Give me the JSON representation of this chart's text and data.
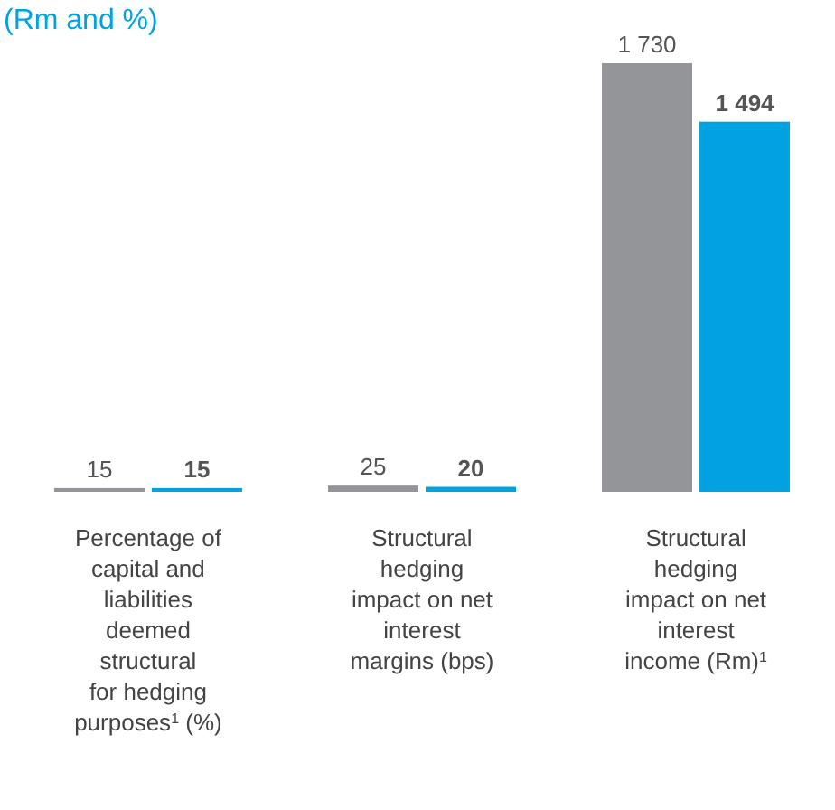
{
  "chart_data": {
    "type": "bar",
    "title": "(Rm and %)",
    "categories": [
      "Percentage of capital and liabilities deemed structural for hedging purposes$^{1}$ (%)",
      "Structural hedging impact on net interest margins (bps)",
      "Structural hedging impact on net interest income (Rm)$^{1}$"
    ],
    "series": [
      {
        "color": "#939598",
        "values": [
          15,
          25,
          1730
        ],
        "value_labels": [
          "15",
          "25",
          "1 730"
        ]
      },
      {
        "color": "#00a3e0",
        "values": [
          15,
          20,
          1494
        ],
        "value_labels": [
          "15",
          "20",
          "1 494"
        ]
      }
    ]
  }
}
